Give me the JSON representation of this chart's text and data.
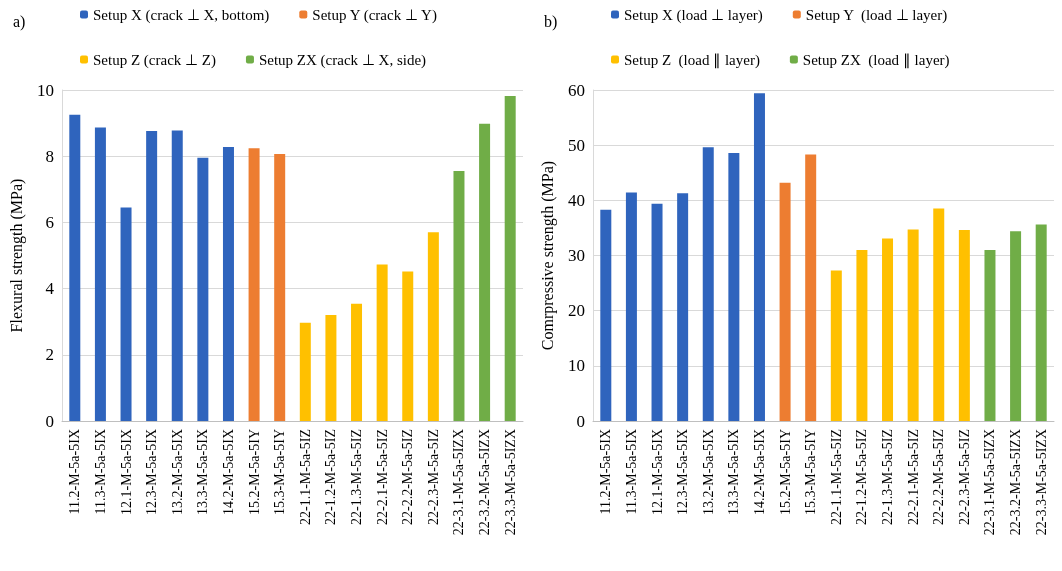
{
  "chart_data": [
    {
      "type": "bar",
      "title": "a)",
      "ylabel": "Flexural strength (MPa)",
      "categories": [
        "11.2-M-5a-5IX",
        "11.3-M-5a-5IX",
        "12.1-M-5a-5IX",
        "12.3-M-5a-5IX",
        "13.2-M-5a-5IX",
        "13.3-M-5a-5IX",
        "14.2-M-5a-5IX",
        "15.2-M-5a-5IY",
        "15.3-M-5a-5IY",
        "22-1.1-M-5a-5IZ",
        "22-1.2-M-5a-5IZ",
        "22-1.3-M-5a-5IZ",
        "22-2.1-M-5a-5IZ",
        "22-2.2-M-5a-5IZ",
        "22-2.3-M-5a-5IZ",
        "22-3.1-M-5a-5IZX",
        "22-3.2-M-5a-5IZX",
        "22-3.3-M-5a-5IZX"
      ],
      "series": [
        {
          "name": "Setup X (crack ⊥ X, bottom)",
          "color": "#2f64bd",
          "values": [
            9.25,
            8.87,
            6.45,
            8.76,
            8.78,
            7.95,
            8.28,
            null,
            null,
            null,
            null,
            null,
            null,
            null,
            null,
            null,
            null,
            null
          ]
        },
        {
          "name": "Setup Y (crack ⊥ Y)",
          "color": "#ed7d31",
          "values": [
            null,
            null,
            null,
            null,
            null,
            null,
            null,
            8.24,
            8.07,
            null,
            null,
            null,
            null,
            null,
            null,
            null,
            null,
            null
          ]
        },
        {
          "name": "Setup Z (crack ⊥ Z)",
          "color": "#ffc000",
          "values": [
            null,
            null,
            null,
            null,
            null,
            null,
            null,
            null,
            null,
            2.97,
            3.2,
            3.54,
            4.73,
            4.52,
            5.7,
            null,
            null,
            null
          ]
        },
        {
          "name": "Setup ZX (crack ⊥ X, side)",
          "color": "#70ad47",
          "values": [
            null,
            null,
            null,
            null,
            null,
            null,
            null,
            null,
            null,
            null,
            null,
            null,
            null,
            null,
            null,
            7.55,
            8.98,
            9.82
          ]
        }
      ],
      "ylim": [
        0,
        10
      ],
      "yticks": [
        0,
        2,
        4,
        6,
        8,
        10
      ],
      "grid": "y",
      "legend": "top"
    },
    {
      "type": "bar",
      "title": "b)",
      "ylabel": "Comrpressive strength (MPa)",
      "categories": [
        "11.2-M-5a-5IX",
        "11.3-M-5a-5IX",
        "12.1-M-5a-5IX",
        "12.3-M-5a-5IX",
        "13.2-M-5a-5IX",
        "13.3-M-5a-5IX",
        "14.2-M-5a-5IX",
        "15.2-M-5a-5IY",
        "15.3-M-5a-5IY",
        "22-1.1-M-5a-5IZ",
        "22-1.2-M-5a-5IZ",
        "22-1.3-M-5a-5IZ",
        "22-2.1-M-5a-5IZ",
        "22-2.2-M-5a-5IZ",
        "22-2.3-M-5a-5IZ",
        "22-3.1-M-5a-5IZX",
        "22-3.2-M-5a-5IZX",
        "22-3.3-M-5a-5IZX"
      ],
      "series": [
        {
          "name": "Setup X (load ⊥ layer)",
          "color": "#2f64bd",
          "values": [
            38.3,
            41.4,
            39.4,
            41.3,
            49.6,
            48.6,
            59.4,
            null,
            null,
            null,
            null,
            null,
            null,
            null,
            null,
            null,
            null,
            null
          ]
        },
        {
          "name": "Setup Y  (load ⊥ layer)",
          "color": "#ed7d31",
          "values": [
            null,
            null,
            null,
            null,
            null,
            null,
            null,
            43.2,
            48.3,
            null,
            null,
            null,
            null,
            null,
            null,
            null,
            null,
            null
          ]
        },
        {
          "name": "Setup Z  (load ∥ layer)",
          "color": "#ffc000",
          "values": [
            null,
            null,
            null,
            null,
            null,
            null,
            null,
            null,
            null,
            27.3,
            31.0,
            33.1,
            34.7,
            38.5,
            34.6,
            null,
            null,
            null
          ]
        },
        {
          "name": "Setup ZX  (load ∥ layer)",
          "color": "#70ad47",
          "values": [
            null,
            null,
            null,
            null,
            null,
            null,
            null,
            null,
            null,
            null,
            null,
            null,
            null,
            null,
            null,
            31.0,
            34.4,
            35.6
          ]
        }
      ],
      "ylim": [
        0,
        60
      ],
      "yticks": [
        0,
        10,
        20,
        30,
        40,
        50,
        60
      ],
      "grid": "y",
      "legend": "top"
    }
  ]
}
